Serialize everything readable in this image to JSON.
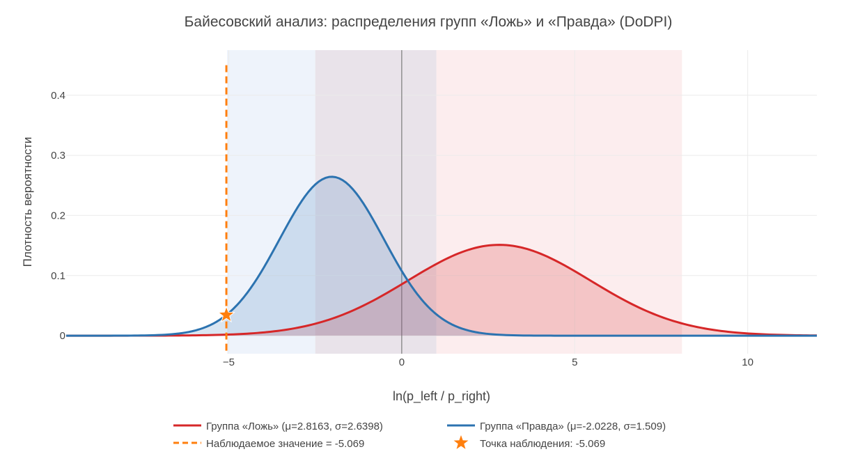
{
  "chart_data": {
    "type": "area",
    "title": "Байесовский анализ: распределения групп «Ложь» и «Правда» (DoDPI)",
    "xlabel": "ln(p_left / p_right)",
    "ylabel": "Плотность вероятности",
    "xlim": [
      -9.7,
      12
    ],
    "ylim": [
      -0.03,
      0.475
    ],
    "x_ticks": [
      -5,
      0,
      5,
      10
    ],
    "x_tick_labels": [
      "−5",
      "0",
      "5",
      "10"
    ],
    "y_ticks": [
      0,
      0.1,
      0.2,
      0.3,
      0.4
    ],
    "y_tick_labels": [
      "0",
      "0.1",
      "0.2",
      "0.3",
      "0.4"
    ],
    "grid": true,
    "zero_line_x": 0,
    "legend_position": "bottom",
    "bands": [
      {
        "from": -5.05,
        "to": -2.5,
        "color": "#eef3fb"
      },
      {
        "from": -2.5,
        "to": 1.0,
        "color": "#e9e3ea"
      },
      {
        "from": 1.0,
        "to": 8.1,
        "color": "#fcedee"
      }
    ],
    "series": [
      {
        "name": "Группа «Ложь» (μ=2.8163, σ=2.6398)",
        "kind": "normal",
        "mu": 2.8163,
        "sigma": 2.6398,
        "color": "#d62728",
        "fill": "rgba(214,39,40,0.2)"
      },
      {
        "name": "Группа «Правда» (μ=-2.0228, σ=1.509)",
        "kind": "normal",
        "mu": -2.0228,
        "sigma": 1.509,
        "color": "#2c73b0",
        "fill": "rgba(70,130,190,0.2)"
      }
    ],
    "observation": {
      "x": -5.069,
      "line_label": "Наблюдаемое значение = -5.069",
      "marker_label": "Точка наблюдения: -5.069",
      "color": "#ff7f0e"
    }
  }
}
